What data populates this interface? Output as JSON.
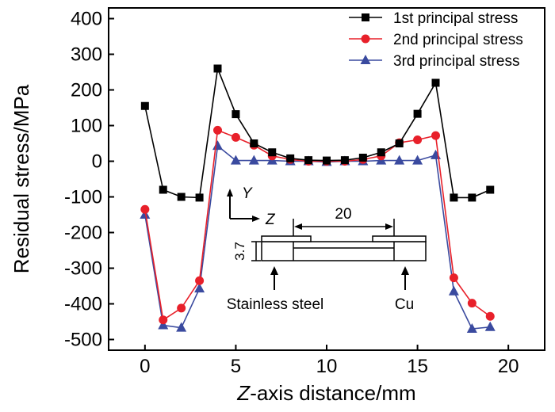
{
  "chart_data": {
    "type": "line",
    "title": "",
    "xlabel": {
      "italic_part": "Z",
      "rest": "-axis distance/mm"
    },
    "ylabel": "Residual stress/MPa",
    "xlim": [
      -2,
      22
    ],
    "ylim": [
      -530,
      430
    ],
    "xticks": [
      0,
      5,
      10,
      15,
      20
    ],
    "yticks": [
      400,
      300,
      200,
      100,
      0,
      -100,
      -200,
      -300,
      -400,
      -500
    ],
    "legend_position": "top-right",
    "series": [
      {
        "name": "1st principal stress",
        "color": "#000000",
        "marker": "square",
        "x": [
          0,
          1,
          2,
          3,
          4,
          5,
          6,
          7,
          8,
          9,
          10,
          11,
          12,
          13,
          14,
          15,
          16,
          17,
          18,
          19
        ],
        "values": [
          155,
          -80,
          -100,
          -102,
          260,
          132,
          50,
          25,
          8,
          3,
          2,
          3,
          10,
          25,
          50,
          133,
          220,
          -102,
          -102,
          -80
        ]
      },
      {
        "name": "2nd principal stress",
        "color": "#e8202a",
        "marker": "circle",
        "x": [
          0,
          1,
          2,
          3,
          4,
          5,
          6,
          7,
          8,
          9,
          10,
          11,
          12,
          13,
          14,
          15,
          16,
          17,
          18,
          19
        ],
        "values": [
          -135,
          -445,
          -412,
          -335,
          87,
          67,
          45,
          15,
          5,
          0,
          0,
          0,
          5,
          15,
          52,
          60,
          72,
          -327,
          -398,
          -435
        ]
      },
      {
        "name": "3rd principal stress",
        "color": "#3a4a9f",
        "marker": "triangle",
        "x": [
          0,
          1,
          2,
          3,
          4,
          5,
          6,
          7,
          8,
          9,
          10,
          11,
          12,
          13,
          14,
          15,
          16,
          17,
          18,
          19
        ],
        "values": [
          -150,
          -460,
          -467,
          -357,
          43,
          2,
          2,
          2,
          0,
          0,
          -2,
          0,
          0,
          2,
          2,
          2,
          17,
          -365,
          -470,
          -465
        ]
      }
    ],
    "inset": {
      "axis_y_label": "Y",
      "axis_z_label": "Z",
      "length_label": "20",
      "thickness_label": "3.7",
      "left_material": "Stainless steel",
      "right_material": "Cu"
    }
  }
}
